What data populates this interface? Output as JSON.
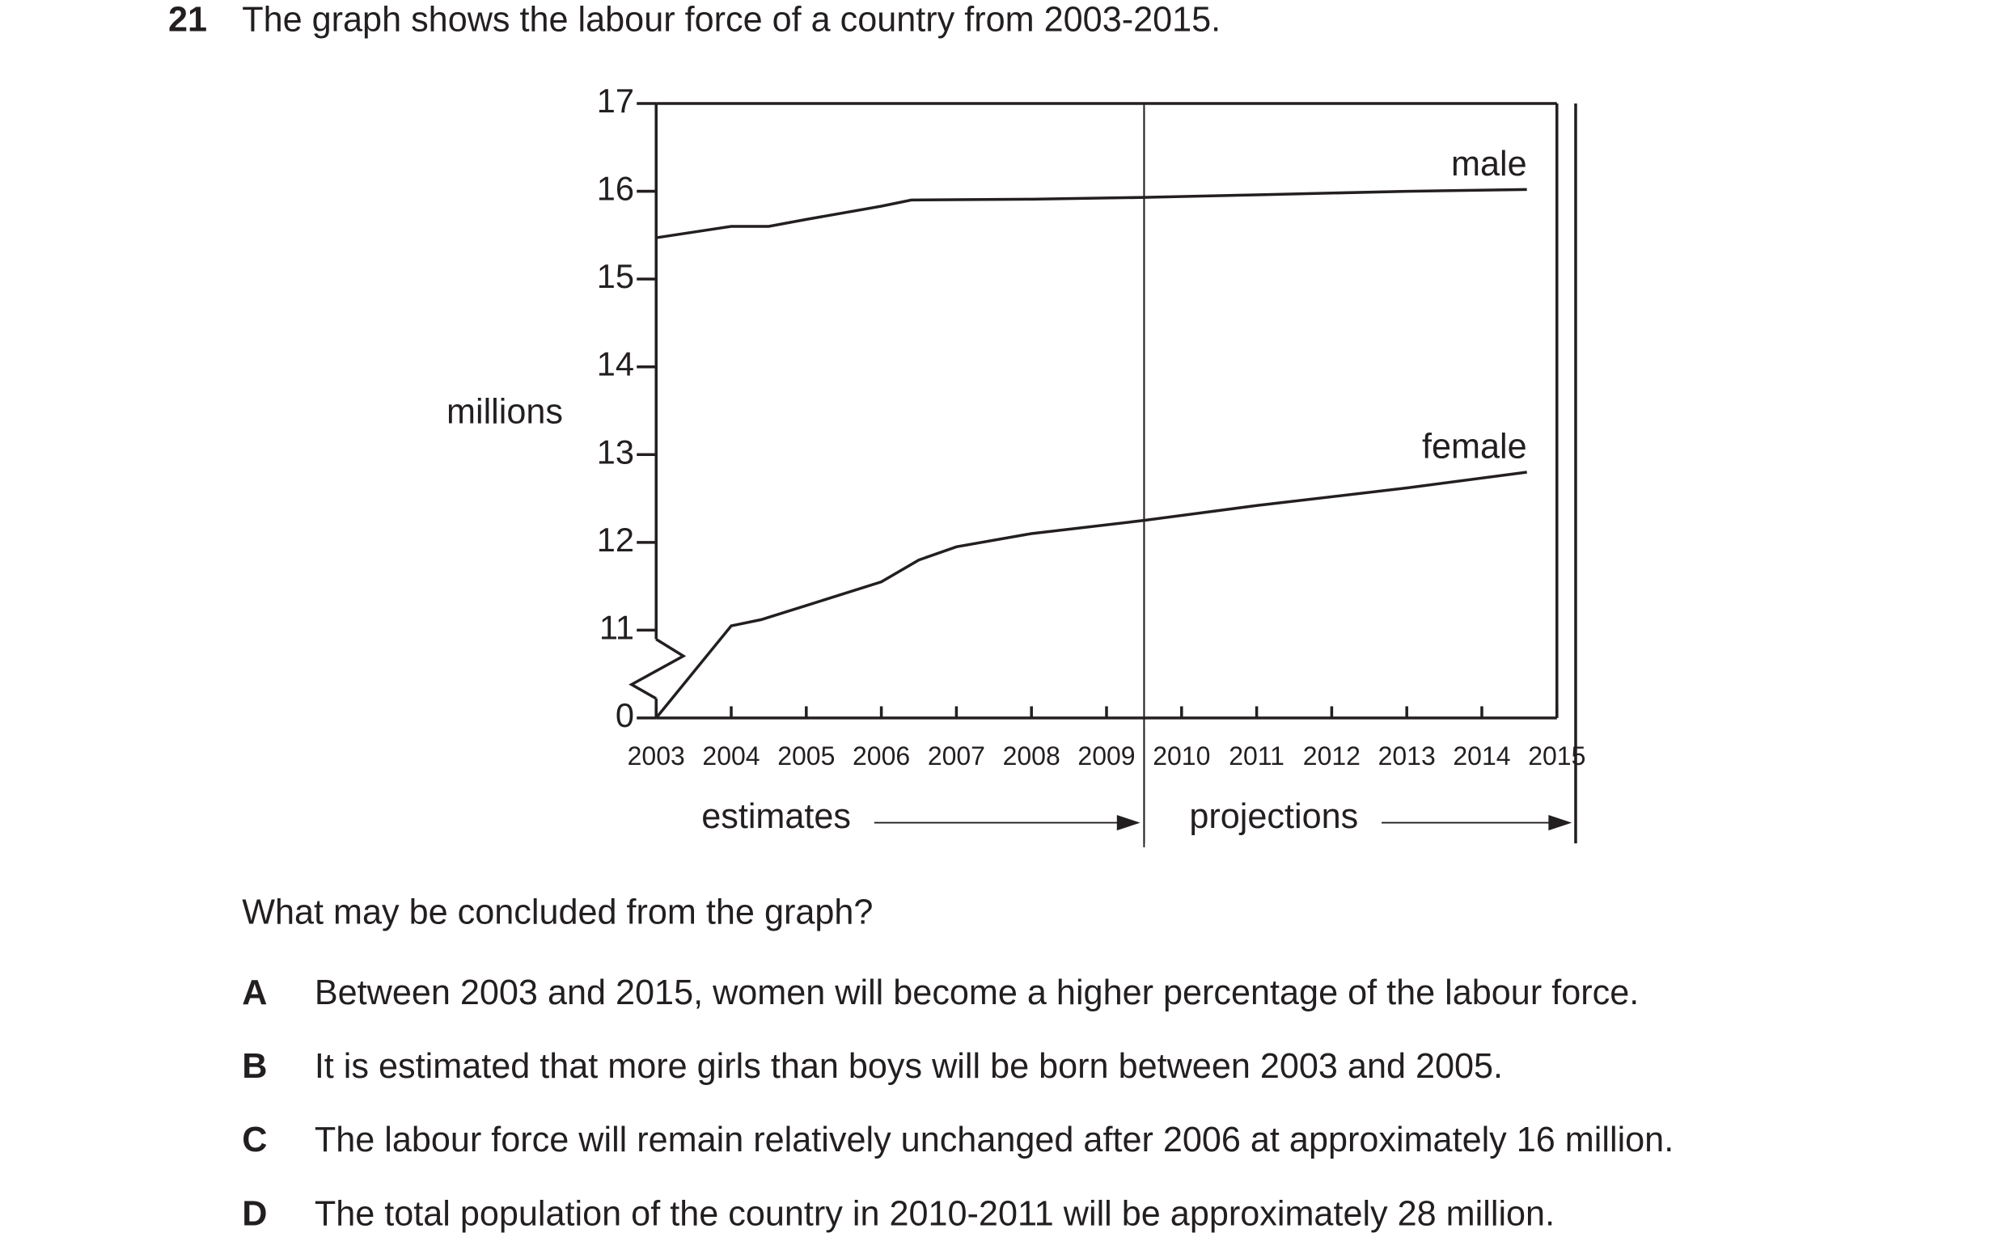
{
  "question": {
    "number": "21",
    "stem": "The graph shows the labour force of a country from 2003-2015.",
    "prompt": "What may be concluded from the graph?",
    "options": [
      {
        "letter": "A",
        "text": "Between 2003 and 2015, women will become a higher percentage of the labour force."
      },
      {
        "letter": "B",
        "text": "It is estimated that more girls than boys will be born between 2003 and 2005."
      },
      {
        "letter": "C",
        "text": "The labour force will remain relatively unchanged after 2006 at approximately 16 million."
      },
      {
        "letter": "D",
        "text": "The total population of the country in 2010-2011 will be approximately 28 million."
      }
    ]
  },
  "chart_data": {
    "type": "line",
    "ylabel": "millions",
    "xlim": [
      2003,
      2015
    ],
    "xticks": [
      2003,
      2004,
      2005,
      2006,
      2007,
      2008,
      2009,
      2010,
      2011,
      2012,
      2013,
      2014,
      2015
    ],
    "ylim": [
      0,
      17
    ],
    "yticks": [
      0,
      11,
      12,
      13,
      14,
      15,
      16,
      17
    ],
    "axis_break": true,
    "regions": [
      {
        "label": "estimates",
        "x": [
          2003,
          2009.5
        ]
      },
      {
        "label": "projections",
        "x": [
          2009.5,
          2015.25
        ]
      }
    ],
    "series": [
      {
        "name": "male",
        "color": "#231f20",
        "x": [
          2003,
          2004,
          2004.5,
          2005,
          2006,
          2006.4,
          2008,
          2009.5,
          2011,
          2013,
          2014.6
        ],
        "values": [
          15.47,
          15.6,
          15.6,
          15.68,
          15.83,
          15.9,
          15.91,
          15.93,
          15.96,
          16.0,
          16.02
        ]
      },
      {
        "name": "female",
        "color": "#231f20",
        "x": [
          2003,
          2004,
          2004.4,
          2005,
          2006,
          2006.5,
          2007,
          2008,
          2009.5,
          2011,
          2013,
          2014.6
        ],
        "values": [
          10.9,
          11.05,
          11.12,
          11.28,
          11.55,
          11.8,
          11.95,
          12.1,
          12.25,
          12.42,
          12.62,
          12.8
        ]
      }
    ]
  }
}
